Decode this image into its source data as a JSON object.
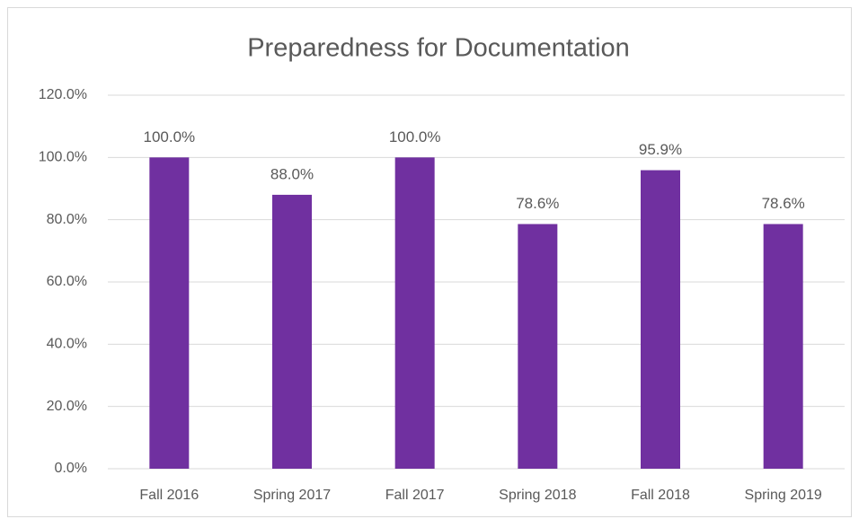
{
  "chart_data": {
    "type": "bar",
    "title": "Preparedness for Documentation",
    "categories": [
      "Fall 2016",
      "Spring 2017",
      "Fall 2017",
      "Spring 2018",
      "Fall 2018",
      "Spring 2019"
    ],
    "values": [
      100,
      88,
      100,
      78.6,
      95.9,
      78.6
    ],
    "value_labels": [
      "100.0%",
      "88.0%",
      "100.0%",
      "78.6%",
      "95.9%",
      "78.6%"
    ],
    "color": "#7030a0",
    "ylim": [
      0,
      120
    ],
    "yticks": [
      {
        "value": 0,
        "label": "0.0%"
      },
      {
        "value": 20,
        "label": "20.0%"
      },
      {
        "value": 40,
        "label": "40.0%"
      },
      {
        "value": 60,
        "label": "60.0%"
      },
      {
        "value": 80,
        "label": "80.0%"
      },
      {
        "value": 100,
        "label": "100.0%"
      },
      {
        "value": 120,
        "label": "120.0%"
      }
    ],
    "grid": true
  }
}
